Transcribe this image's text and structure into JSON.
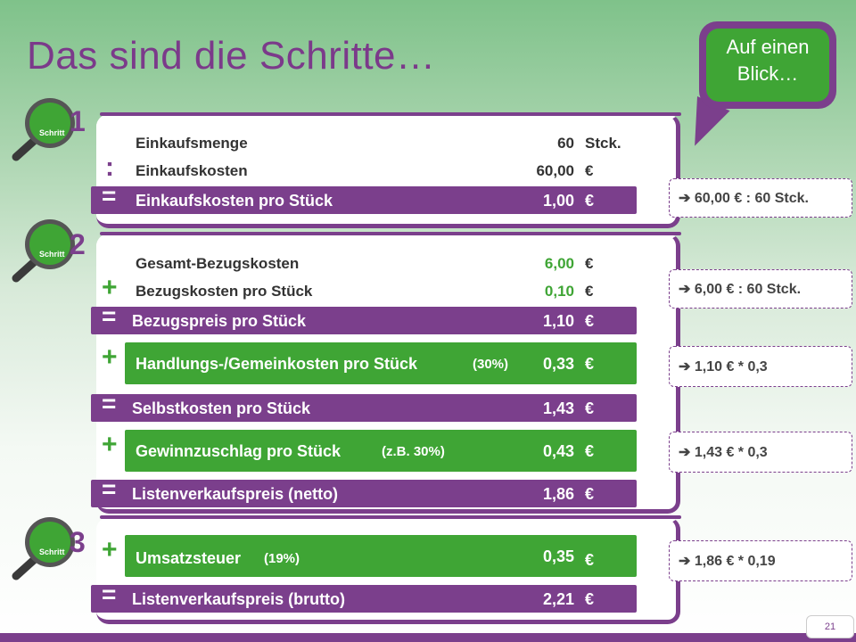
{
  "title": "Das sind die Schritte…",
  "bubble": {
    "line1": "Auf einen",
    "line2": "Blick…"
  },
  "steps": [
    {
      "label": "Schritt",
      "number": "1"
    },
    {
      "label": "Schritt",
      "number": "2"
    },
    {
      "label": "Schritt",
      "number": "3"
    }
  ],
  "ops": {
    "colon": ":",
    "equals": "=",
    "plus": "+"
  },
  "rows": {
    "einkaufsmenge": {
      "label": "Einkaufsmenge",
      "value": "60",
      "unit": "Stck."
    },
    "einkaufskosten": {
      "label": "Einkaufskosten",
      "value": "60,00",
      "unit": "€"
    },
    "einkaufskosten_stueck": {
      "label": "Einkaufskosten pro Stück",
      "value": "1,00",
      "unit": "€"
    },
    "gesamt_bezugskosten": {
      "label": "Gesamt-Bezugskosten",
      "value": "6,00",
      "unit": "€"
    },
    "bezugskosten_stueck": {
      "label": "Bezugskosten pro Stück",
      "value": "0,10",
      "unit": "€"
    },
    "bezugspreis": {
      "label": "Bezugspreis pro Stück",
      "value": "1,10",
      "unit": "€"
    },
    "handlungskosten": {
      "label": "Handlungs-/Gemeinkosten pro Stück",
      "pct": "(30%)",
      "value": "0,33",
      "unit": "€"
    },
    "selbstkosten": {
      "label": "Selbstkosten pro Stück",
      "value": "1,43",
      "unit": "€"
    },
    "gewinnzuschlag": {
      "label": "Gewinnzuschlag pro Stück",
      "pct": "(z.B. 30%)",
      "value": "0,43",
      "unit": "€"
    },
    "lvp_netto": {
      "label": "Listenverkaufspreis (netto)",
      "value": "1,86",
      "unit": "€"
    },
    "umsatzsteuer": {
      "label": "Umsatzsteuer",
      "pct": "(19%)",
      "value": "0,35",
      "unit": "€"
    },
    "lvp_brutto": {
      "label": "Listenverkaufspreis (brutto)",
      "value": "2,21",
      "unit": "€"
    }
  },
  "hints": [
    "➔ 60,00 € : 60 Stck.",
    "➔ 6,00 € : 60 Stck.",
    "➔ 1,10 € * 0,3",
    "➔ 1,43 € * 0,3",
    "➔ 1,86 € * 0,19"
  ],
  "page_number": "21",
  "colors": {
    "purple": "#7b3f8c",
    "green": "#3fa535"
  }
}
